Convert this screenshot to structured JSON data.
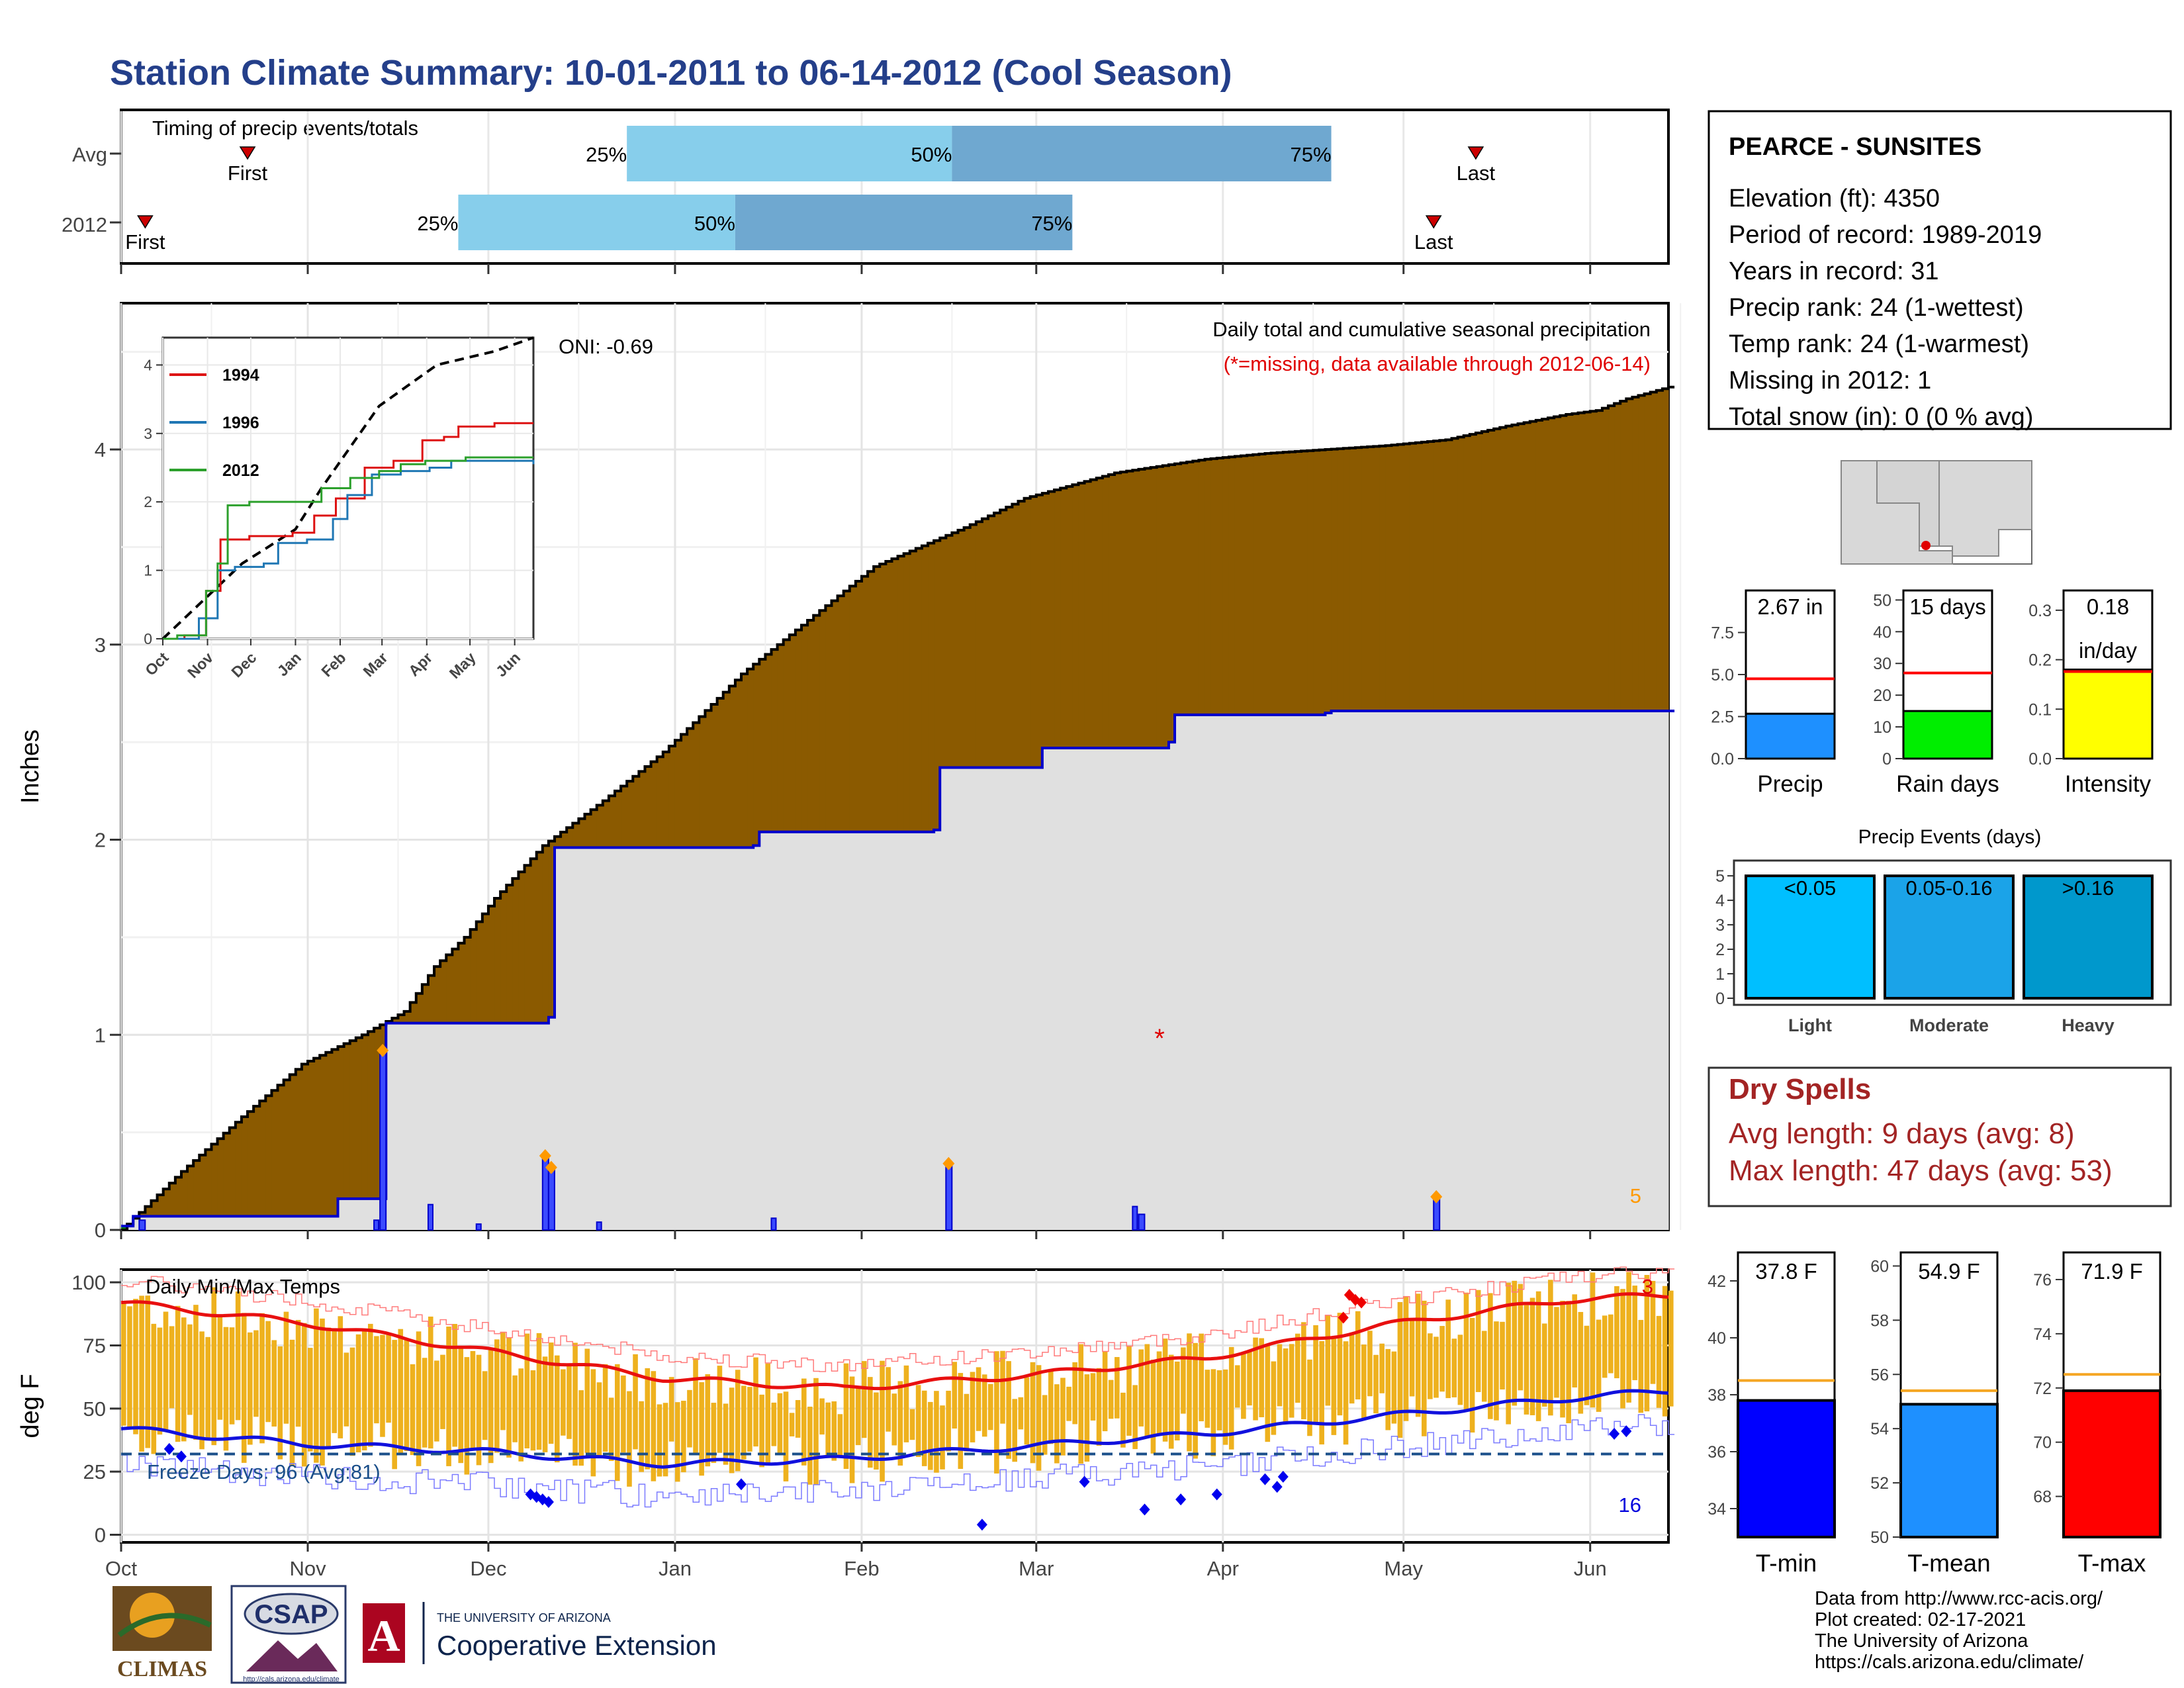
{
  "title": "Station Climate Summary: 10-01-2011 to 06-14-2012 (Cool Season)",
  "colors": {
    "title": "#243f8a",
    "precip_brown": "#8b5a00",
    "precip_green": "#0a8a0a",
    "avg_fill": "#e0e0e0",
    "avg_line": "#0000cc",
    "temp_bar": "#eeb11e",
    "tmax_line": "#e81010",
    "tmin_line": "#1111dd",
    "freeze_line": "#1b4f8a",
    "light": "#00bfff",
    "moderate": "#1ba3e8",
    "heavy": "#0098cc",
    "dry_spells": "#a32424",
    "missing": "#e00000"
  },
  "timing_panel": {
    "title": "Timing of precip events/totals",
    "rows": [
      {
        "label": "Avg",
        "first": "First",
        "last": "Last",
        "q25": "25%",
        "q50": "50%",
        "q75": "75%",
        "first_day": 21,
        "q25_day": 84,
        "q50_day": 138,
        "q75_day": 201,
        "last_day": 225
      },
      {
        "label": "2012",
        "first": "First",
        "last": "Last",
        "q25": "25%",
        "q50": "50%",
        "q75": "75%",
        "first_day": 4,
        "q25_day": 56,
        "q50_day": 102,
        "q75_day": 158,
        "last_day": 218
      }
    ]
  },
  "precip_panel": {
    "ylabel": "Inches",
    "header": "Daily total and cumulative seasonal precipitation",
    "missing_note": "(*=missing, data available through 2012-06-14)",
    "oni": "ONI: -0.69",
    "count_label": "5",
    "yticks": [
      "0",
      "1",
      "2",
      "3",
      "4"
    ],
    "missing_marker": "*"
  },
  "inset": {
    "legend": [
      "1994",
      "1996",
      "2012"
    ],
    "yticks": [
      "0",
      "1",
      "2",
      "3",
      "4"
    ],
    "xticks": [
      "Oct",
      "Nov",
      "Dec",
      "Jan",
      "Feb",
      "Mar",
      "Apr",
      "May",
      "Jun"
    ]
  },
  "temp_panel": {
    "ylabel": "deg F",
    "title": "Daily Min/Max Temps",
    "freeze": "Freeze Days: 96 (Avg:81)",
    "count_high": "3",
    "count_low": "16",
    "yticks": [
      "0",
      "25",
      "50",
      "75",
      "100"
    ]
  },
  "months": [
    "Oct",
    "Nov",
    "Dec",
    "Jan",
    "Feb",
    "Mar",
    "Apr",
    "May",
    "Jun"
  ],
  "station": {
    "name": "PEARCE - SUNSITES",
    "lines": [
      "Elevation (ft): 4350",
      "Period of record: 1989-2019",
      "Years in record: 31",
      "Precip rank: 24 (1-wettest)",
      "Temp rank: 24 (1-warmest)",
      "Missing in 2012: 1",
      "Total snow (in): 0 (0 % avg)"
    ]
  },
  "mini_bars": [
    {
      "label": "Precip",
      "value_text": "2.67 in",
      "value": 2.67,
      "avg": 4.75,
      "ymax": 10,
      "yticks": [
        "0.0",
        "2.5",
        "5.0",
        "7.5"
      ],
      "color": "#1e90ff"
    },
    {
      "label": "Rain days",
      "value_text": "15 days",
      "value": 15,
      "avg": 27,
      "ymax": 53,
      "yticks": [
        "0",
        "10",
        "20",
        "30",
        "40",
        "50"
      ],
      "color": "#00ee00"
    },
    {
      "label": "Intensity",
      "value_text": "0.18",
      "value_text2": "in/day",
      "value": 0.18,
      "avg": 0.176,
      "ymax": 0.34,
      "yticks": [
        "0.0",
        "0.1",
        "0.2",
        "0.3"
      ],
      "color": "#ffff00"
    }
  ],
  "precip_events": {
    "title": "Precip Events (days)",
    "yticks": [
      "0",
      "1",
      "2",
      "3",
      "4",
      "5"
    ],
    "bars": [
      {
        "label": "Light",
        "inner": "<0.05",
        "value": 5
      },
      {
        "label": "Moderate",
        "inner": "0.05-0.16",
        "value": 5
      },
      {
        "label": "Heavy",
        "inner": ">0.16",
        "value": 5
      }
    ]
  },
  "dry_spells": {
    "title": "Dry Spells",
    "lines": [
      "Avg length: 9 days (avg: 8)",
      "Max length: 47 days (avg: 53)"
    ]
  },
  "temp_bars": [
    {
      "label": "T-min",
      "value_text": "37.8 F",
      "value": 37.8,
      "avg": 38.5,
      "ymin": 33,
      "ymax": 43,
      "yticks": [
        "34",
        "36",
        "38",
        "40",
        "42"
      ],
      "color": "#0000ff"
    },
    {
      "label": "T-mean",
      "value_text": "54.9 F",
      "value": 54.9,
      "avg": 55.4,
      "ymin": 50,
      "ymax": 60.5,
      "yticks": [
        "50",
        "52",
        "54",
        "56",
        "58",
        "60"
      ],
      "color": "#1e90ff"
    },
    {
      "label": "T-max",
      "value_text": "71.9 F",
      "value": 71.9,
      "avg": 72.5,
      "ymin": 66.5,
      "ymax": 77,
      "yticks": [
        "68",
        "70",
        "72",
        "74",
        "76"
      ],
      "color": "#ff0000"
    }
  ],
  "footer": {
    "lines": [
      "Data from http://www.rcc-acis.org/",
      "Plot created: 02-17-2021",
      "The University of Arizona",
      "https://cals.arizona.edu/climate/"
    ],
    "logo_climas": "CLIMAS",
    "logo_csap": "CSAP",
    "logo_csap_url": "http://cals.arizona.edu/climate",
    "ua_line1": "THE UNIVERSITY OF ARIZONA",
    "ua_line2": "Cooperative Extension"
  },
  "chart_data": [
    {
      "type": "area",
      "title": "Daily total and cumulative seasonal precipitation",
      "xlabel": "",
      "ylabel": "Inches",
      "ylim": [
        0,
        4.75
      ],
      "x_units": "days since Oct 1",
      "cumulative_2012": {
        "x": [
          0,
          10,
          20,
          30,
          40,
          47,
          52,
          57,
          62,
          70,
          80,
          90,
          95,
          103,
          113,
          125,
          140,
          150,
          165,
          180,
          190,
          200,
          210,
          220,
          230,
          240,
          245,
          250,
          257
        ],
        "y": [
          0,
          0.3,
          0.58,
          0.85,
          1.0,
          1.12,
          1.35,
          1.5,
          1.7,
          1.97,
          2.2,
          2.45,
          2.6,
          2.85,
          3.1,
          3.4,
          3.6,
          3.75,
          3.88,
          3.95,
          3.98,
          4.0,
          4.02,
          4.05,
          4.12,
          4.18,
          4.2,
          4.26,
          4.32
        ]
      },
      "cumulative_avg": {
        "x": [
          0,
          2,
          35,
          36,
          43,
          44,
          71,
          72,
          105,
          106,
          135,
          136,
          152,
          153,
          174,
          175,
          200,
          201,
          258
        ],
        "y": [
          0.02,
          0.07,
          0.07,
          0.16,
          0.16,
          1.06,
          1.09,
          1.96,
          1.97,
          2.04,
          2.05,
          2.37,
          2.37,
          2.47,
          2.5,
          2.64,
          2.65,
          2.66,
          2.66
        ]
      },
      "daily_2012": {
        "x": [
          3,
          43,
          70,
          71,
          137,
          169,
          218
        ],
        "y": [
          0.05,
          0.92,
          0.38,
          0.32,
          0.34,
          0.08,
          0.17
        ]
      },
      "grid": true
    },
    {
      "type": "bar",
      "title": "Daily Min/Max Temps",
      "ylabel": "deg F",
      "ylim": [
        0,
        105
      ],
      "freeze_line": 32,
      "avg_tmax": {
        "x": [
          0,
          30,
          60,
          90,
          120,
          150,
          180,
          210,
          240,
          257
        ],
        "y": [
          92,
          84,
          73,
          62,
          58,
          63,
          70,
          83,
          93,
          95
        ]
      },
      "avg_tmin": {
        "x": [
          0,
          30,
          60,
          90,
          120,
          150,
          180,
          210,
          240,
          257
        ],
        "y": [
          42,
          36,
          33,
          28,
          30,
          35,
          40,
          47,
          54,
          57
        ]
      }
    }
  ]
}
